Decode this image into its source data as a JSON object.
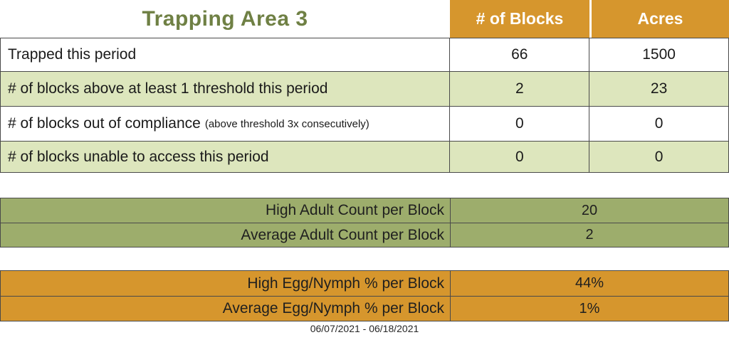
{
  "title": "Trapping Area 3",
  "columns": {
    "blocks": "# of Blocks",
    "acres": "Acres"
  },
  "summary_rows": [
    {
      "label": "Trapped this period",
      "sublabel": "",
      "blocks": "66",
      "acres": "1500"
    },
    {
      "label": "# of blocks above at least 1 threshold this period",
      "sublabel": "",
      "blocks": "2",
      "acres": "23"
    },
    {
      "label": "# of blocks out of compliance",
      "sublabel": "(above threshold 3x consecutively)",
      "blocks": "0",
      "acres": "0"
    },
    {
      "label": "# of blocks unable to access this period",
      "sublabel": "",
      "blocks": "0",
      "acres": "0"
    }
  ],
  "adult_section": {
    "rows": [
      {
        "label": "High Adult Count per Block",
        "value": "20"
      },
      {
        "label": "Average Adult Count per Block",
        "value": "2"
      }
    ]
  },
  "egg_section": {
    "rows": [
      {
        "label": "High Egg/Nymph % per Block",
        "value": "44%"
      },
      {
        "label": "Average Egg/Nymph % per Block",
        "value": "1%"
      }
    ]
  },
  "date_range": "06/07/2021 - 06/18/2021",
  "colors": {
    "orange": "#D6962D",
    "light_green": "#DDE6BD",
    "olive_green": "#9DAD6C",
    "title_green": "#6F8044",
    "border": "#4A4A4A",
    "header_text": "#FFFFFF",
    "body_text": "#1A1A1A"
  }
}
